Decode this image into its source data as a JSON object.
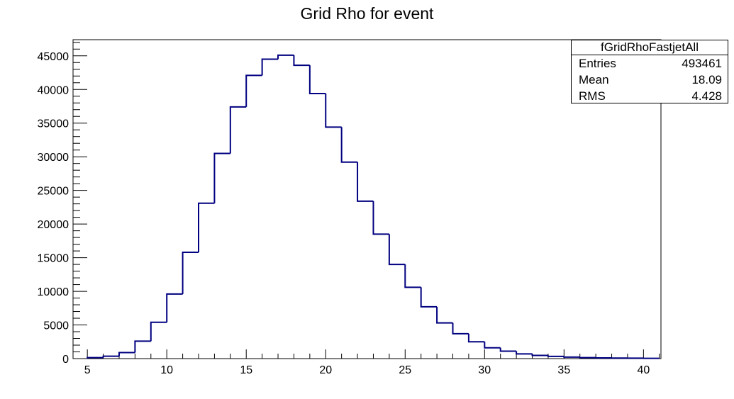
{
  "chart_data": {
    "type": "histogram",
    "title": "Grid Rho for event",
    "xlabel": "",
    "ylabel": "",
    "xlim": [
      4.1,
      41.1
    ],
    "ylim": [
      0,
      47400
    ],
    "bin_width": 1,
    "x_ticks": [
      5,
      10,
      15,
      20,
      25,
      30,
      35,
      40
    ],
    "y_ticks": [
      0,
      5000,
      10000,
      15000,
      20000,
      25000,
      30000,
      35000,
      40000,
      45000
    ],
    "bin_low_edges": [
      5,
      6,
      7,
      8,
      9,
      10,
      11,
      12,
      13,
      14,
      15,
      16,
      17,
      18,
      19,
      20,
      21,
      22,
      23,
      24,
      25,
      26,
      27,
      28,
      29,
      30,
      31,
      32,
      33,
      34,
      35,
      36,
      37,
      38,
      39,
      40
    ],
    "values": [
      150,
      350,
      900,
      2600,
      5400,
      9600,
      15800,
      23100,
      30500,
      37400,
      42100,
      44500,
      45100,
      43600,
      39400,
      34400,
      29200,
      23400,
      18500,
      14000,
      10600,
      7700,
      5300,
      3700,
      2500,
      1600,
      1100,
      700,
      480,
      330,
      230,
      150,
      100,
      80,
      60,
      40
    ],
    "line_color": "#000080",
    "grid": false
  },
  "stats_box": {
    "name": "fGridRhoFastjetAll",
    "entries_label": "Entries",
    "entries_value": "493461",
    "mean_label": "Mean",
    "mean_value": "18.09",
    "rms_label": "RMS",
    "rms_value": "4.428"
  }
}
